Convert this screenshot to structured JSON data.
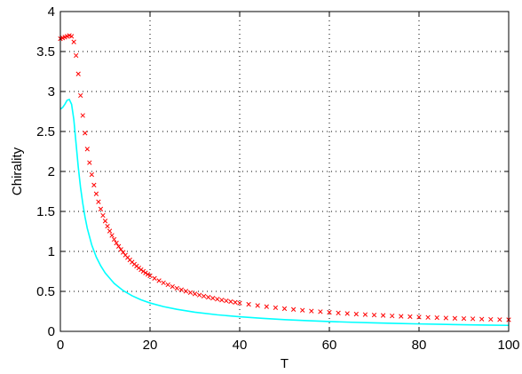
{
  "chart_data": {
    "type": "line",
    "title": "",
    "xlabel": "T",
    "ylabel": "Chirality",
    "xlim": [
      0,
      100
    ],
    "ylim": [
      0,
      4
    ],
    "xticks": [
      "0",
      "20",
      "40",
      "60",
      "80",
      "100"
    ],
    "yticks": [
      "0",
      "0.5",
      "1",
      "1.5",
      "2",
      "2.5",
      "3",
      "3.5",
      "4"
    ],
    "grid": true,
    "legend": "none",
    "series": [
      {
        "marker": "x",
        "line": "none",
        "color": "#ff0000",
        "points": [
          [
            0,
            3.66
          ],
          [
            0.5,
            3.67
          ],
          [
            1,
            3.68
          ],
          [
            1.5,
            3.69
          ],
          [
            2,
            3.7
          ],
          [
            2.5,
            3.69
          ],
          [
            3,
            3.62
          ],
          [
            3.5,
            3.45
          ],
          [
            4,
            3.22
          ],
          [
            4.5,
            2.95
          ],
          [
            5,
            2.7
          ],
          [
            5.5,
            2.48
          ],
          [
            6,
            2.28
          ],
          [
            6.5,
            2.11
          ],
          [
            7,
            1.96
          ],
          [
            7.5,
            1.83
          ],
          [
            8,
            1.72
          ],
          [
            8.5,
            1.62
          ],
          [
            9,
            1.53
          ],
          [
            9.5,
            1.45
          ],
          [
            10,
            1.38
          ],
          [
            10.5,
            1.315
          ],
          [
            11,
            1.255
          ],
          [
            11.5,
            1.2
          ],
          [
            12,
            1.15
          ],
          [
            12.5,
            1.105
          ],
          [
            13,
            1.063
          ],
          [
            13.5,
            1.024
          ],
          [
            14,
            0.988
          ],
          [
            14.5,
            0.954
          ],
          [
            15,
            0.923
          ],
          [
            15.5,
            0.894
          ],
          [
            16,
            0.866
          ],
          [
            16.5,
            0.84
          ],
          [
            17,
            0.816
          ],
          [
            17.5,
            0.793
          ],
          [
            18,
            0.771
          ],
          [
            18.5,
            0.751
          ],
          [
            19,
            0.731
          ],
          [
            19.5,
            0.713
          ],
          [
            20,
            0.695
          ],
          [
            21,
            0.663
          ],
          [
            22,
            0.634
          ],
          [
            23,
            0.607
          ],
          [
            24,
            0.583
          ],
          [
            25,
            0.56
          ],
          [
            26,
            0.539
          ],
          [
            27,
            0.52
          ],
          [
            28,
            0.502
          ],
          [
            29,
            0.485
          ],
          [
            30,
            0.469
          ],
          [
            31,
            0.454
          ],
          [
            32,
            0.44
          ],
          [
            33,
            0.427
          ],
          [
            34,
            0.415
          ],
          [
            35,
            0.403
          ],
          [
            36,
            0.392
          ],
          [
            37,
            0.382
          ],
          [
            38,
            0.372
          ],
          [
            39,
            0.363
          ],
          [
            40,
            0.354
          ],
          [
            42,
            0.338
          ],
          [
            44,
            0.323
          ],
          [
            46,
            0.309
          ],
          [
            48,
            0.296
          ],
          [
            50,
            0.284
          ],
          [
            52,
            0.274
          ],
          [
            54,
            0.264
          ],
          [
            56,
            0.254
          ],
          [
            58,
            0.246
          ],
          [
            60,
            0.238
          ],
          [
            62,
            0.23
          ],
          [
            64,
            0.223
          ],
          [
            66,
            0.216
          ],
          [
            68,
            0.21
          ],
          [
            70,
            0.204
          ],
          [
            72,
            0.199
          ],
          [
            74,
            0.193
          ],
          [
            76,
            0.188
          ],
          [
            78,
            0.184
          ],
          [
            80,
            0.179
          ],
          [
            82,
            0.175
          ],
          [
            84,
            0.171
          ],
          [
            86,
            0.167
          ],
          [
            88,
            0.163
          ],
          [
            90,
            0.16
          ],
          [
            92,
            0.157
          ],
          [
            94,
            0.153
          ],
          [
            96,
            0.15
          ],
          [
            98,
            0.147
          ],
          [
            100,
            0.145
          ]
        ]
      },
      {
        "marker": "none",
        "line": "solid",
        "color": "#00ffff",
        "points": [
          [
            0,
            2.78
          ],
          [
            0.5,
            2.8
          ],
          [
            1,
            2.84
          ],
          [
            1.5,
            2.89
          ],
          [
            2,
            2.9
          ],
          [
            2.5,
            2.84
          ],
          [
            3,
            2.65
          ],
          [
            3.5,
            2.35
          ],
          [
            4,
            2.05
          ],
          [
            4.5,
            1.8
          ],
          [
            5,
            1.6
          ],
          [
            5.5,
            1.43
          ],
          [
            6,
            1.29
          ],
          [
            7,
            1.08
          ],
          [
            8,
            0.93
          ],
          [
            9,
            0.82
          ],
          [
            10,
            0.73
          ],
          [
            12,
            0.6
          ],
          [
            14,
            0.51
          ],
          [
            16,
            0.445
          ],
          [
            18,
            0.395
          ],
          [
            20,
            0.355
          ],
          [
            23,
            0.31
          ],
          [
            26,
            0.276
          ],
          [
            30,
            0.24
          ],
          [
            35,
            0.207
          ],
          [
            40,
            0.183
          ],
          [
            45,
            0.163
          ],
          [
            50,
            0.147
          ],
          [
            55,
            0.134
          ],
          [
            60,
            0.123
          ],
          [
            65,
            0.114
          ],
          [
            70,
            0.106
          ],
          [
            75,
            0.099
          ],
          [
            80,
            0.093
          ],
          [
            85,
            0.088
          ],
          [
            90,
            0.083
          ],
          [
            95,
            0.079
          ],
          [
            100,
            0.075
          ]
        ]
      }
    ]
  }
}
